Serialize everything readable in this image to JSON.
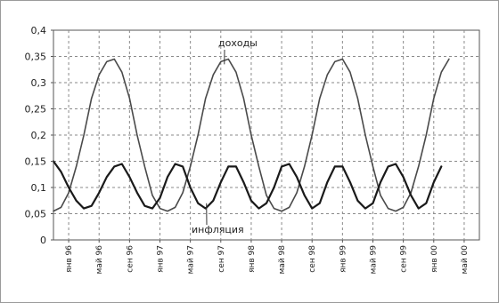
{
  "chart_data": {
    "type": "line",
    "title": "",
    "xlabel": "",
    "ylabel": "",
    "ylim": [
      0,
      0.4
    ],
    "y_ticks": [
      "0",
      "0,05",
      "0,1",
      "0,15",
      "0,2",
      "0,25",
      "0,3",
      "0,35",
      "0,4"
    ],
    "x_categories": [
      "янв 96",
      "май 96",
      "сен 96",
      "янв 97",
      "май 97",
      "сен 97",
      "янв 98",
      "май 98",
      "сен 98",
      "янв 99",
      "май 99",
      "сен 99",
      "янв 00",
      "май 00"
    ],
    "grid": true,
    "legend": "none",
    "series": [
      {
        "name": "доходы",
        "label_text": "доходы",
        "color": "#4a4a4a",
        "x": [
          0,
          1,
          2,
          3,
          4,
          5,
          6,
          7,
          8,
          9,
          10,
          11,
          12,
          13,
          14,
          15,
          16,
          17,
          18,
          19,
          20,
          21,
          22,
          23,
          24,
          25,
          26,
          27,
          28,
          29,
          30,
          31,
          32,
          33,
          34,
          35,
          36,
          37,
          38,
          39,
          40,
          41,
          42,
          43,
          44,
          45,
          46,
          47,
          48,
          49,
          50,
          51,
          52
        ],
        "values": [
          0.055,
          0.062,
          0.09,
          0.14,
          0.2,
          0.27,
          0.315,
          0.34,
          0.345,
          0.32,
          0.27,
          0.2,
          0.14,
          0.085,
          0.06,
          0.055,
          0.062,
          0.09,
          0.14,
          0.2,
          0.27,
          0.315,
          0.34,
          0.345,
          0.32,
          0.27,
          0.2,
          0.14,
          0.085,
          0.06,
          0.055,
          0.062,
          0.09,
          0.14,
          0.2,
          0.27,
          0.315,
          0.34,
          0.345,
          0.32,
          0.27,
          0.2,
          0.14,
          0.085,
          0.06,
          0.055,
          0.062,
          0.09,
          0.14,
          0.2,
          0.27,
          0.32,
          0.345
        ]
      },
      {
        "name": "инфляция",
        "label_text": "инфляция",
        "color": "#1a1a1a",
        "x": [
          0,
          1,
          2,
          3,
          4,
          5,
          6,
          7,
          8,
          9,
          10,
          11,
          12,
          13,
          14,
          15,
          16,
          17,
          18,
          19,
          20,
          21,
          22,
          23,
          24,
          25,
          26,
          27,
          28,
          29,
          30,
          31,
          32,
          33,
          34,
          35,
          36,
          37,
          38,
          39,
          40,
          41,
          42,
          43,
          44,
          45,
          46,
          47,
          48,
          49,
          50,
          51
        ],
        "values": [
          0.15,
          0.13,
          0.1,
          0.075,
          0.06,
          0.065,
          0.09,
          0.12,
          0.14,
          0.145,
          0.12,
          0.09,
          0.065,
          0.06,
          0.08,
          0.12,
          0.145,
          0.14,
          0.1,
          0.07,
          0.06,
          0.075,
          0.11,
          0.14,
          0.14,
          0.11,
          0.075,
          0.06,
          0.07,
          0.1,
          0.14,
          0.145,
          0.12,
          0.085,
          0.06,
          0.07,
          0.11,
          0.14,
          0.14,
          0.11,
          0.075,
          0.06,
          0.07,
          0.11,
          0.14,
          0.145,
          0.12,
          0.085,
          0.06,
          0.07,
          0.11,
          0.14
        ]
      }
    ]
  },
  "ui": {
    "colors": {
      "grid": "#8a8a8a",
      "axis": "#555555"
    }
  }
}
